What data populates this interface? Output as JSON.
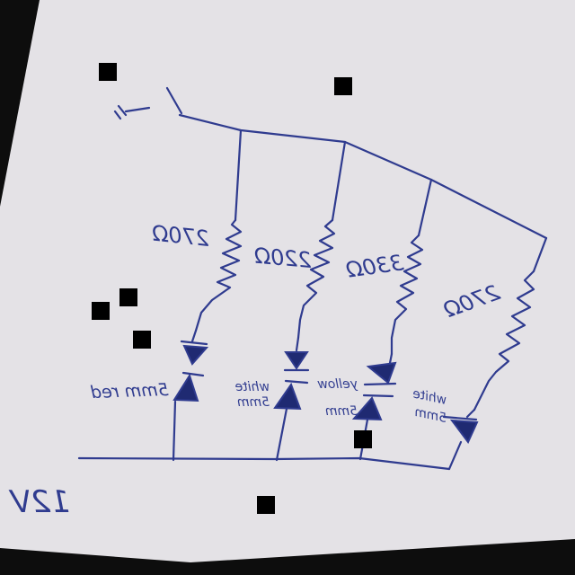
{
  "colors": {
    "background": "#0d0d0d",
    "paper": "#e4e2e6",
    "ink": "#2f3b8f",
    "mask": "#000000"
  },
  "labels": {
    "supply": "12V",
    "resistor_1": "270Ω",
    "resistor_2": "220Ω",
    "resistor_3": "330Ω",
    "resistor_4": "270Ω",
    "led_1": "5mm red",
    "led_2_line1": "white",
    "led_2_line2": "5mm",
    "led_3_line1": "yellow",
    "led_3_line2": "5mm",
    "led_4_line1": "white",
    "led_4_line2": "5mm"
  },
  "icons": {
    "battery": "battery-symbol-icon",
    "switch": "switch-symbol-icon"
  }
}
